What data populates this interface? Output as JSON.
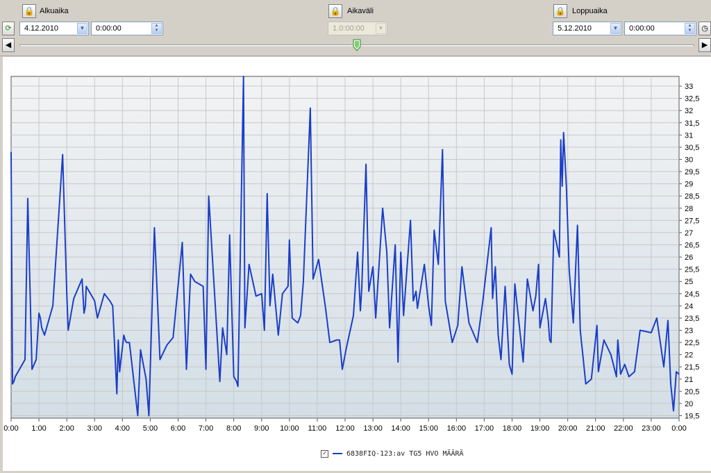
{
  "toolbar": {
    "start": {
      "label": "Alkuaika",
      "date": "4.12.2010",
      "time": "0:00:00"
    },
    "interval": {
      "label": "Aikaväli",
      "value": "1.0:00:00"
    },
    "end": {
      "label": "Loppuaika",
      "date": "5.12.2010",
      "time": "0:00:00"
    }
  },
  "icons": {
    "lock": "lock-icon",
    "refresh": "refresh-icon",
    "clock": "clock-icon",
    "skip_start": "skip-to-start-icon",
    "skip_end": "skip-to-end-icon"
  },
  "colors": {
    "series": "#1a3ec8",
    "grid": "#c8c8c8"
  },
  "chart_data": {
    "type": "line",
    "title": "",
    "xlabel": "",
    "ylabel": "",
    "x_unit": "hours",
    "xlim": [
      0,
      24
    ],
    "ylim": [
      19.4,
      33.4
    ],
    "x_tick_labels": [
      "0:00",
      "1:00",
      "2:00",
      "3:00",
      "4:00",
      "5:00",
      "6:00",
      "7:00",
      "8:00",
      "9:00",
      "10:00",
      "11:00",
      "12:00",
      "13:00",
      "14:00",
      "15:00",
      "16:00",
      "17:00",
      "18:00",
      "19:00",
      "20:00",
      "21:00",
      "22:00",
      "23:00",
      "0:00"
    ],
    "y_ticks": [
      19.5,
      20,
      20.5,
      21,
      21.5,
      22,
      22.5,
      23,
      23.5,
      24,
      24.5,
      25,
      25.5,
      26,
      26.5,
      27,
      27.5,
      28,
      28.5,
      29,
      29.5,
      30,
      30.5,
      31,
      31.5,
      32,
      32.5,
      33
    ],
    "y_tick_labels": [
      "19,5",
      "20",
      "20,5",
      "21",
      "21,5",
      "22",
      "22,5",
      "23",
      "23,5",
      "24",
      "24,5",
      "25",
      "25,5",
      "26",
      "26,5",
      "27",
      "27,5",
      "28",
      "28,5",
      "29",
      "29,5",
      "30",
      "30,5",
      "31",
      "31,5",
      "32",
      "32,5",
      "33"
    ],
    "grid": true,
    "y_axis_side": "right",
    "legend_position": "bottom-center",
    "series": [
      {
        "name": "6838FIQ-123:av TG5 HVO MÄÄRÄ",
        "x": [
          0,
          0.05,
          0.1,
          0.15,
          0.5,
          0.6,
          0.75,
          0.9,
          1.0,
          1.05,
          1.1,
          1.2,
          1.5,
          1.85,
          2.0,
          2.05,
          2.25,
          2.55,
          2.62,
          2.67,
          2.7,
          3.0,
          3.1,
          3.35,
          3.55,
          3.65,
          3.8,
          3.85,
          3.9,
          4.05,
          4.1,
          4.15,
          4.25,
          4.55,
          4.65,
          4.85,
          4.95,
          5.15,
          5.35,
          5.6,
          5.82,
          6.15,
          6.3,
          6.45,
          6.6,
          6.9,
          7.0,
          7.1,
          7.5,
          7.6,
          7.75,
          7.85,
          8.0,
          8.1,
          8.15,
          8.35,
          8.4,
          8.55,
          8.8,
          9.0,
          9.1,
          9.2,
          9.3,
          9.4,
          9.6,
          9.75,
          9.95,
          10.0,
          10.1,
          10.3,
          10.4,
          10.5,
          10.75,
          10.85,
          11.05,
          11.3,
          11.45,
          11.7,
          11.8,
          11.9,
          12.05,
          12.3,
          12.45,
          12.55,
          12.6,
          12.75,
          12.85,
          13.0,
          13.1,
          13.35,
          13.5,
          13.6,
          13.8,
          13.9,
          14.0,
          14.1,
          14.35,
          14.45,
          14.55,
          14.6,
          14.85,
          15.0,
          15.1,
          15.2,
          15.35,
          15.5,
          15.6,
          15.85,
          16.05,
          16.2,
          16.45,
          16.75,
          16.95,
          17.25,
          17.3,
          17.4,
          17.5,
          17.6,
          17.75,
          17.9,
          18.0,
          18.1,
          18.4,
          18.55,
          18.75,
          18.85,
          18.95,
          19.0,
          19.2,
          19.3,
          19.35,
          19.4,
          19.5,
          19.7,
          19.75,
          19.8,
          19.85,
          19.95,
          20.05,
          20.2,
          20.35,
          20.45,
          20.65,
          20.85,
          21.05,
          21.1,
          21.3,
          21.55,
          21.75,
          21.8,
          21.9,
          22.05,
          22.2,
          22.4,
          22.6,
          23.0,
          23.2,
          23.45,
          23.6,
          23.7,
          23.8,
          23.9,
          24.0
        ]
      }
    ]
  }
}
